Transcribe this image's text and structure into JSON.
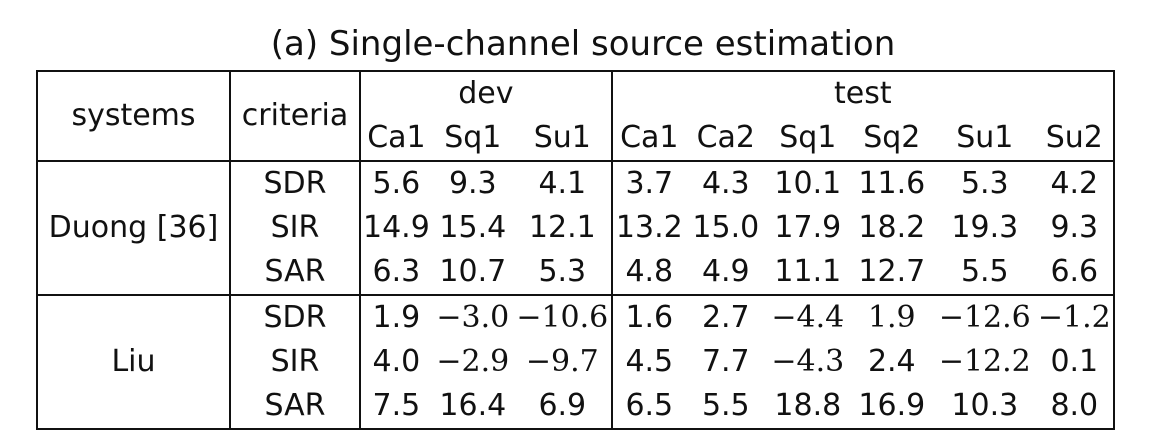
{
  "caption": "(a) Single-channel source estimation",
  "header": {
    "systems": "systems",
    "criteria": "criteria",
    "dev": "dev",
    "test": "test",
    "dev_cols": [
      "Ca1",
      "Sq1",
      "Su1"
    ],
    "test_cols": [
      "Ca1",
      "Ca2",
      "Sq1",
      "Sq2",
      "Su1",
      "Su2"
    ]
  },
  "groups": [
    {
      "system": "Duong [36]",
      "rows": [
        {
          "criterion": "SDR",
          "dev": [
            "5.6",
            "9.3",
            "4.1"
          ],
          "test": [
            "3.7",
            "4.3",
            "10.1",
            "11.6",
            "5.3",
            "4.2"
          ]
        },
        {
          "criterion": "SIR",
          "dev": [
            "14.9",
            "15.4",
            "12.1"
          ],
          "test": [
            "13.2",
            "15.0",
            "17.9",
            "18.2",
            "19.3",
            "9.3"
          ]
        },
        {
          "criterion": "SAR",
          "dev": [
            "6.3",
            "10.7",
            "5.3"
          ],
          "test": [
            "4.8",
            "4.9",
            "11.1",
            "12.7",
            "5.5",
            "6.6"
          ]
        }
      ]
    },
    {
      "system": "Liu",
      "rows": [
        {
          "criterion": "SDR",
          "dev": [
            "1.9",
            "−3.0",
            "−10.6"
          ],
          "test": [
            "1.6",
            "2.7",
            "−4.4",
            "1.9",
            "−12.6",
            "−1.2"
          ]
        },
        {
          "criterion": "SIR",
          "dev": [
            "4.0",
            "−2.9",
            "−9.7"
          ],
          "test": [
            "4.5",
            "7.7",
            "−4.3",
            "2.4",
            "−12.2",
            "0.1"
          ]
        },
        {
          "criterion": "SAR",
          "dev": [
            "7.5",
            "16.4",
            "6.9"
          ],
          "test": [
            "6.5",
            "5.5",
            "18.8",
            "16.9",
            "10.3",
            "8.0"
          ]
        }
      ]
    }
  ]
}
